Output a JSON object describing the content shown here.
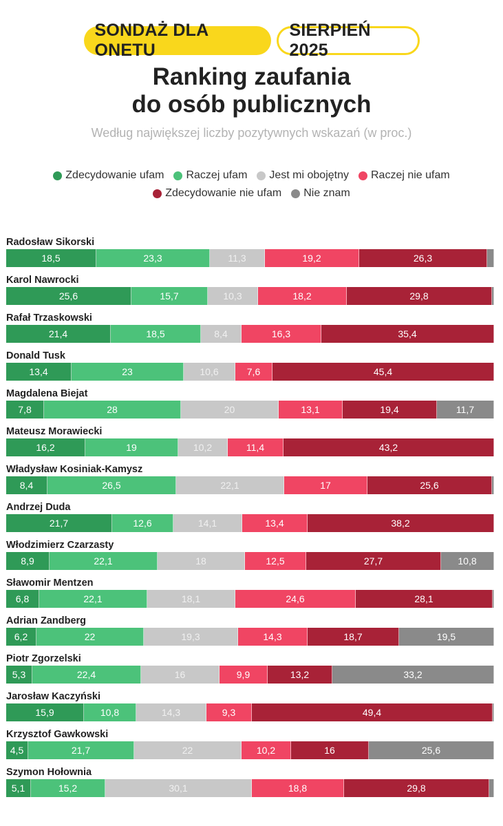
{
  "header": {
    "badge_survey": "SONDAŻ DLA ONETU",
    "badge_date": "SIERPIEŃ 2025",
    "title_line1": "Ranking zaufania",
    "title_line2": "do osób publicznych",
    "subtitle": "Według największej liczby pozytywnych wskazań (w proc.)"
  },
  "colors": {
    "badge_yellow": "#f9d71c",
    "strong_trust": "#2f9a57",
    "rather_trust": "#4cc27a",
    "indifferent": "#c8c8c8",
    "rather_distrust": "#f04563",
    "strong_distrust": "#a82237",
    "dont_know": "#8a8a8a"
  },
  "chart_data": {
    "type": "bar",
    "orientation": "horizontal-stacked-100",
    "title": "Ranking zaufania do osób publicznych",
    "subtitle": "Według największej liczby pozytywnych wskazań (w proc.)",
    "unit": "%",
    "legend_position": "top",
    "series": [
      {
        "key": "strong_trust",
        "name": "Zdecydowanie ufam"
      },
      {
        "key": "rather_trust",
        "name": "Raczej ufam"
      },
      {
        "key": "indifferent",
        "name": "Jest mi obojętny"
      },
      {
        "key": "rather_distrust",
        "name": "Raczej nie ufam"
      },
      {
        "key": "strong_distrust",
        "name": "Zdecydowanie nie ufam"
      },
      {
        "key": "dont_know",
        "name": "Nie znam"
      }
    ],
    "rows": [
      {
        "name": "Radosław Sikorski",
        "values": [
          18.5,
          23.3,
          11.3,
          19.2,
          26.3,
          1.4
        ],
        "labels": [
          "18,5",
          "23,3",
          "11,3",
          "19,2",
          "26,3",
          ""
        ]
      },
      {
        "name": "Karol Nawrocki",
        "values": [
          25.6,
          15.7,
          10.3,
          18.2,
          29.8,
          0.4
        ],
        "labels": [
          "25,6",
          "15,7",
          "10,3",
          "18,2",
          "29,8",
          ""
        ]
      },
      {
        "name": "Rafał Trzaskowski",
        "values": [
          21.4,
          18.5,
          8.4,
          16.3,
          35.4,
          0.0
        ],
        "labels": [
          "21,4",
          "18,5",
          "8,4",
          "16,3",
          "35,4",
          ""
        ]
      },
      {
        "name": "Donald Tusk",
        "values": [
          13.4,
          23.0,
          10.6,
          7.6,
          45.4,
          0.0
        ],
        "labels": [
          "13,4",
          "23",
          "10,6",
          "7,6",
          "45,4",
          ""
        ]
      },
      {
        "name": "Magdalena Biejat",
        "values": [
          7.8,
          28.0,
          20.0,
          13.1,
          19.4,
          11.7
        ],
        "labels": [
          "7,8",
          "28",
          "20",
          "13,1",
          "19,4",
          "11,7"
        ]
      },
      {
        "name": "Mateusz Morawiecki",
        "values": [
          16.2,
          19.0,
          10.2,
          11.4,
          43.2,
          0.0
        ],
        "labels": [
          "16,2",
          "19",
          "10,2",
          "11,4",
          "43,2",
          ""
        ]
      },
      {
        "name": "Władysław Kosiniak-Kamysz",
        "values": [
          8.4,
          26.5,
          22.1,
          17.0,
          25.6,
          0.4
        ],
        "labels": [
          "8,4",
          "26,5",
          "22,1",
          "17",
          "25,6",
          ""
        ]
      },
      {
        "name": "Andrzej Duda",
        "values": [
          21.7,
          12.6,
          14.1,
          13.4,
          38.2,
          0.0
        ],
        "labels": [
          "21,7",
          "12,6",
          "14,1",
          "13,4",
          "38,2",
          ""
        ]
      },
      {
        "name": "Włodzimierz Czarzasty",
        "values": [
          8.9,
          22.1,
          18.0,
          12.5,
          27.7,
          10.8
        ],
        "labels": [
          "8,9",
          "22,1",
          "18",
          "12,5",
          "27,7",
          "10,8"
        ]
      },
      {
        "name": "Sławomir Mentzen",
        "values": [
          6.8,
          22.1,
          18.1,
          24.6,
          28.1,
          0.3
        ],
        "labels": [
          "6,8",
          "22,1",
          "18,1",
          "24,6",
          "28,1",
          ""
        ]
      },
      {
        "name": "Adrian Zandberg",
        "values": [
          6.2,
          22.0,
          19.3,
          14.3,
          18.7,
          19.5
        ],
        "labels": [
          "6,2",
          "22",
          "19,3",
          "14,3",
          "18,7",
          "19,5"
        ]
      },
      {
        "name": "Piotr Zgorzelski",
        "values": [
          5.3,
          22.4,
          16.0,
          9.9,
          13.2,
          33.2
        ],
        "labels": [
          "5,3",
          "22,4",
          "16",
          "9,9",
          "13,2",
          "33,2"
        ]
      },
      {
        "name": "Jarosław Kaczyński",
        "values": [
          15.9,
          10.8,
          14.3,
          9.3,
          49.4,
          0.3
        ],
        "labels": [
          "15,9",
          "10,8",
          "14,3",
          "9,3",
          "49,4",
          ""
        ]
      },
      {
        "name": "Krzysztof Gawkowski",
        "values": [
          4.5,
          21.7,
          22.0,
          10.2,
          16.0,
          25.6
        ],
        "labels": [
          "4,5",
          "21,7",
          "22",
          "10,2",
          "16",
          "25,6"
        ]
      },
      {
        "name": "Szymon Hołownia",
        "values": [
          5.1,
          15.2,
          30.1,
          18.8,
          29.8,
          1.0
        ],
        "labels": [
          "5,1",
          "15,2",
          "30,1",
          "18,8",
          "29,8",
          ""
        ]
      }
    ]
  }
}
